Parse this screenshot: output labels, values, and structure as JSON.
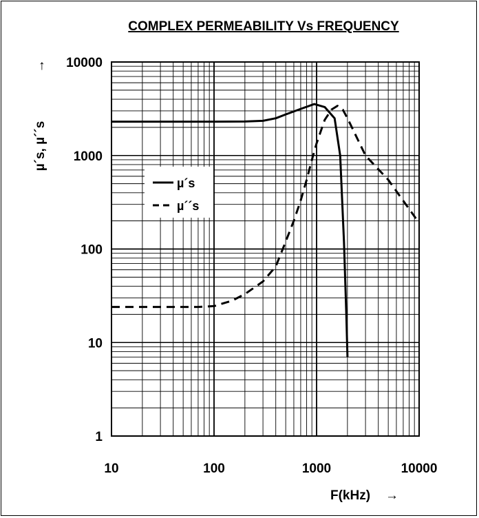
{
  "chart_data": {
    "type": "line",
    "title": "COMPLEX PERMEABILITY  Vs FREQUENCY",
    "xlabel": "F(kHz)",
    "ylabel": "µ´s, µ´´s",
    "xscale": "log",
    "yscale": "log",
    "xlim": [
      10,
      10000
    ],
    "ylim": [
      1,
      10000
    ],
    "xticks": [
      "10",
      "100",
      "1000",
      "10000"
    ],
    "yticks": [
      "1",
      "10",
      "100",
      "1000",
      "10000"
    ],
    "axis_arrow": "→",
    "grid": true,
    "legend_position": "left",
    "series": [
      {
        "name": "µ´s",
        "style": "solid",
        "x": [
          10,
          100,
          200,
          300,
          400,
          500,
          700,
          950,
          1200,
          1500,
          1700,
          1850,
          1950,
          2000
        ],
        "y": [
          2300,
          2300,
          2310,
          2350,
          2500,
          2750,
          3150,
          3550,
          3300,
          2500,
          1000,
          120,
          20,
          7
        ]
      },
      {
        "name": "µ´´s",
        "style": "dashed",
        "x": [
          10,
          30,
          70,
          100,
          150,
          200,
          300,
          400,
          500,
          600,
          700,
          800,
          900,
          1000,
          1200,
          1400,
          1600,
          1800,
          2000,
          3000,
          5000,
          10000
        ],
        "y": [
          24,
          24,
          24,
          24.5,
          28,
          33,
          45,
          65,
          120,
          200,
          330,
          550,
          900,
          1350,
          2400,
          3100,
          3400,
          3100,
          2500,
          1000,
          550,
          190
        ]
      }
    ]
  }
}
